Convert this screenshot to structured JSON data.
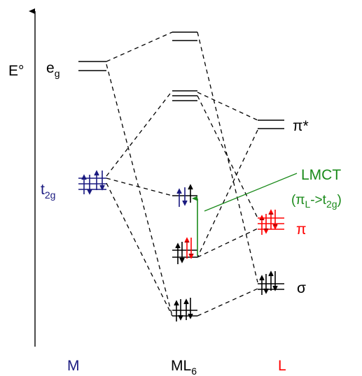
{
  "axis": {
    "label": "E°"
  },
  "columns": {
    "metal": "M",
    "complex": "ML",
    "complex_sub": "6",
    "ligand": "L"
  },
  "levels": {
    "metal_eg": {
      "base": "e",
      "sub": "g"
    },
    "metal_t2g": {
      "base": "t",
      "sub": "2g"
    },
    "ligand_pi_star": "π*",
    "ligand_pi": "π",
    "ligand_sigma": "σ"
  },
  "annotation": {
    "title": "LMCT",
    "detail_open": "(π",
    "detail_sub1": "L",
    "detail_mid": "->t",
    "detail_sub2": "2g",
    "detail_close": ")"
  },
  "colors": {
    "metal": "#1a1a80",
    "ligand": "#ff0000",
    "transition": "#1a8a1a",
    "lines": "#000000"
  }
}
